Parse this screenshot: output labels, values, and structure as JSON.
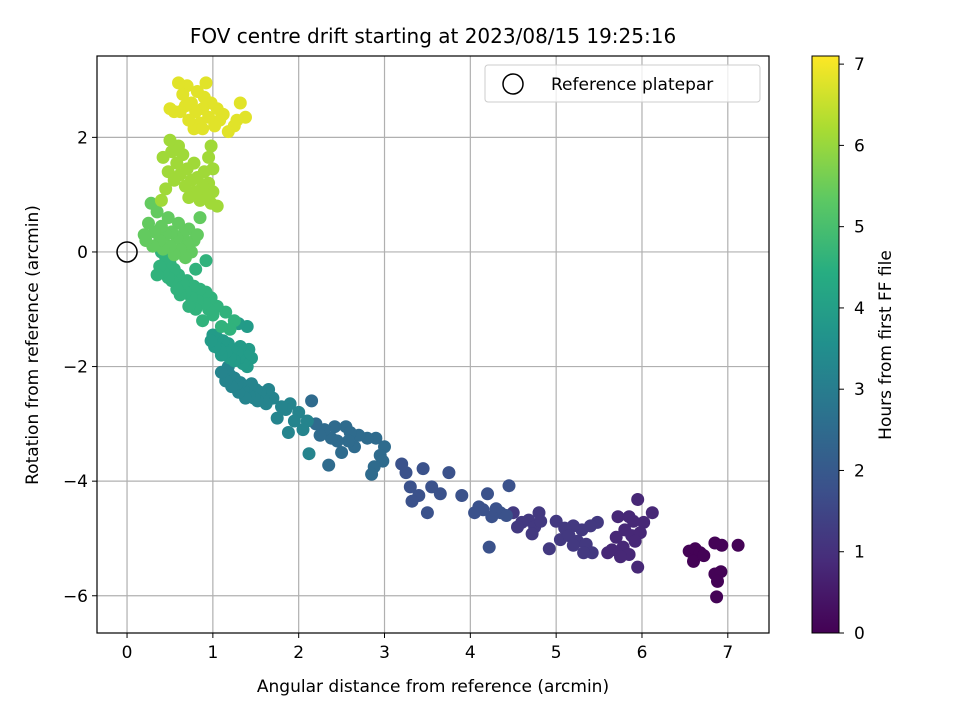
{
  "chart_data": {
    "type": "scatter",
    "title": "FOV centre drift starting at 2023/08/15 19:25:16",
    "xlabel": "Angular distance from reference (arcmin)",
    "ylabel": "Rotation from reference (arcmin)",
    "xlim": [
      -0.35,
      7.48
    ],
    "ylim": [
      -6.65,
      3.42
    ],
    "xticks": [
      0,
      1,
      2,
      3,
      4,
      5,
      6,
      7
    ],
    "yticks": [
      -6,
      -4,
      -2,
      0,
      2
    ],
    "grid": true,
    "legend": {
      "position": "top-right",
      "entries": [
        {
          "label": "Reference platepar",
          "marker": "open-circle"
        }
      ]
    },
    "reference_point": {
      "x": 0,
      "y": 0
    },
    "colorbar": {
      "label": "Hours from first FF file",
      "colormap": "viridis",
      "range": [
        0,
        7.1
      ],
      "ticks": [
        0,
        1,
        2,
        3,
        4,
        5,
        6,
        7
      ]
    },
    "series": [
      {
        "t": 0.05,
        "points": [
          [
            6.55,
            -5.22
          ],
          [
            6.62,
            -5.18
          ],
          [
            6.68,
            -5.25
          ],
          [
            6.6,
            -5.4
          ],
          [
            6.72,
            -5.3
          ],
          [
            6.85,
            -5.08
          ],
          [
            6.93,
            -5.12
          ],
          [
            7.12,
            -5.12
          ],
          [
            6.85,
            -5.62
          ],
          [
            6.92,
            -5.58
          ],
          [
            6.88,
            -5.75
          ],
          [
            6.87,
            -6.02
          ]
        ]
      },
      {
        "t": 0.8,
        "points": [
          [
            5.95,
            -4.32
          ],
          [
            6.12,
            -4.55
          ],
          [
            6.02,
            -4.72
          ],
          [
            5.72,
            -4.62
          ],
          [
            5.85,
            -4.62
          ],
          [
            5.9,
            -4.7
          ],
          [
            5.8,
            -4.85
          ],
          [
            5.7,
            -4.98
          ],
          [
            5.88,
            -4.95
          ],
          [
            5.98,
            -4.9
          ],
          [
            5.65,
            -5.2
          ],
          [
            5.78,
            -5.15
          ],
          [
            5.92,
            -5.05
          ],
          [
            5.6,
            -5.25
          ],
          [
            5.85,
            -5.28
          ],
          [
            5.95,
            -5.5
          ],
          [
            5.75,
            -5.32
          ]
        ]
      },
      {
        "t": 1.2,
        "points": [
          [
            5.48,
            -4.72
          ],
          [
            5.4,
            -4.78
          ],
          [
            5.3,
            -4.85
          ],
          [
            5.2,
            -4.78
          ],
          [
            5.1,
            -4.82
          ],
          [
            5.05,
            -5.02
          ],
          [
            5.15,
            -4.95
          ],
          [
            5.25,
            -5.05
          ],
          [
            5.35,
            -5.1
          ],
          [
            5.42,
            -5.25
          ],
          [
            5.32,
            -5.25
          ],
          [
            5.2,
            -5.12
          ],
          [
            5.0,
            -4.7
          ],
          [
            4.92,
            -5.18
          ],
          [
            4.8,
            -4.55
          ],
          [
            4.68,
            -4.68
          ],
          [
            4.75,
            -4.8
          ],
          [
            4.82,
            -4.7
          ],
          [
            4.72,
            -4.92
          ],
          [
            4.6,
            -4.72
          ],
          [
            4.55,
            -4.8
          ],
          [
            4.5,
            -4.55
          ]
        ]
      },
      {
        "t": 1.8,
        "points": [
          [
            4.45,
            -4.08
          ],
          [
            4.35,
            -4.55
          ],
          [
            4.42,
            -4.6
          ],
          [
            4.3,
            -4.48
          ],
          [
            4.25,
            -4.62
          ],
          [
            4.2,
            -4.22
          ],
          [
            4.1,
            -4.45
          ],
          [
            4.15,
            -4.5
          ],
          [
            4.05,
            -4.55
          ],
          [
            4.22,
            -5.15
          ],
          [
            3.9,
            -4.25
          ],
          [
            3.75,
            -3.85
          ],
          [
            3.65,
            -4.22
          ],
          [
            3.55,
            -4.1
          ],
          [
            3.5,
            -4.55
          ],
          [
            3.45,
            -3.78
          ],
          [
            3.4,
            -4.25
          ],
          [
            3.3,
            -4.1
          ],
          [
            3.32,
            -4.35
          ],
          [
            3.25,
            -3.85
          ],
          [
            3.2,
            -3.7
          ]
        ]
      },
      {
        "t": 2.5,
        "points": [
          [
            3.0,
            -3.4
          ],
          [
            2.95,
            -3.55
          ],
          [
            2.98,
            -3.65
          ],
          [
            2.88,
            -3.75
          ],
          [
            2.85,
            -3.88
          ],
          [
            2.9,
            -3.25
          ],
          [
            2.8,
            -3.25
          ],
          [
            2.7,
            -3.2
          ],
          [
            2.65,
            -3.4
          ],
          [
            2.55,
            -3.05
          ],
          [
            2.6,
            -3.15
          ],
          [
            2.58,
            -3.3
          ],
          [
            2.5,
            -3.5
          ],
          [
            2.45,
            -3.3
          ],
          [
            2.42,
            -3.05
          ],
          [
            2.38,
            -3.25
          ],
          [
            2.35,
            -3.72
          ],
          [
            2.3,
            -3.1
          ],
          [
            2.25,
            -3.2
          ],
          [
            2.2,
            -3.0
          ],
          [
            2.15,
            -2.6
          ]
        ]
      },
      {
        "t": 3.2,
        "points": [
          [
            2.1,
            -2.95
          ],
          [
            2.12,
            -3.52
          ],
          [
            2.05,
            -3.1
          ],
          [
            2.0,
            -2.8
          ],
          [
            1.95,
            -2.95
          ],
          [
            1.9,
            -2.65
          ],
          [
            1.88,
            -3.15
          ],
          [
            1.85,
            -2.75
          ],
          [
            1.8,
            -2.7
          ],
          [
            1.75,
            -2.9
          ],
          [
            1.7,
            -2.55
          ],
          [
            1.65,
            -2.4
          ],
          [
            1.62,
            -2.65
          ],
          [
            1.58,
            -2.55
          ],
          [
            1.55,
            -2.45
          ],
          [
            1.52,
            -2.6
          ],
          [
            1.5,
            -2.4
          ],
          [
            1.48,
            -2.55
          ],
          [
            1.45,
            -2.3
          ],
          [
            1.42,
            -2.5
          ],
          [
            1.4,
            -2.35
          ],
          [
            1.35,
            -2.4
          ],
          [
            1.38,
            -2.55
          ],
          [
            1.32,
            -2.28
          ],
          [
            1.3,
            -2.45
          ],
          [
            1.28,
            -2.3
          ],
          [
            1.25,
            -2.2
          ],
          [
            1.22,
            -2.35
          ],
          [
            1.2,
            -2.15
          ],
          [
            1.18,
            -2.0
          ],
          [
            1.15,
            -2.25
          ],
          [
            1.1,
            -2.1
          ]
        ]
      },
      {
        "t": 3.9,
        "points": [
          [
            1.45,
            -1.85
          ],
          [
            1.42,
            -1.7
          ],
          [
            1.4,
            -2.0
          ],
          [
            1.38,
            -1.8
          ],
          [
            1.35,
            -1.95
          ],
          [
            1.32,
            -1.65
          ],
          [
            1.3,
            -1.85
          ],
          [
            1.28,
            -1.75
          ],
          [
            1.25,
            -1.9
          ],
          [
            1.22,
            -1.7
          ],
          [
            1.2,
            -1.85
          ],
          [
            1.18,
            -1.6
          ],
          [
            1.15,
            -1.75
          ],
          [
            1.12,
            -1.55
          ],
          [
            1.1,
            -1.8
          ],
          [
            1.08,
            -1.7
          ],
          [
            1.05,
            -1.5
          ],
          [
            1.02,
            -1.65
          ],
          [
            1.0,
            -1.45
          ],
          [
            0.98,
            -1.55
          ],
          [
            1.4,
            -1.3
          ],
          [
            1.3,
            -1.25
          ]
        ]
      },
      {
        "t": 4.6,
        "points": [
          [
            1.25,
            -1.2
          ],
          [
            1.2,
            -1.35
          ],
          [
            1.15,
            -1.05
          ],
          [
            1.1,
            -1.3
          ],
          [
            1.05,
            -0.95
          ],
          [
            1.0,
            -1.1
          ],
          [
            0.98,
            -0.8
          ],
          [
            0.95,
            -1.0
          ],
          [
            0.92,
            -0.7
          ],
          [
            0.9,
            -0.9
          ],
          [
            0.88,
            -1.2
          ],
          [
            0.85,
            -0.65
          ],
          [
            0.82,
            -0.85
          ],
          [
            0.8,
            -1.0
          ],
          [
            0.78,
            -0.6
          ],
          [
            0.75,
            -0.8
          ],
          [
            0.72,
            -0.95
          ],
          [
            0.7,
            -0.5
          ],
          [
            0.68,
            -0.7
          ],
          [
            0.65,
            -0.55
          ],
          [
            0.62,
            -0.75
          ],
          [
            0.6,
            -0.4
          ],
          [
            0.58,
            -0.65
          ],
          [
            0.55,
            -0.3
          ],
          [
            0.52,
            -0.5
          ],
          [
            0.5,
            -0.2
          ],
          [
            0.48,
            -0.45
          ],
          [
            0.45,
            -0.1
          ],
          [
            0.42,
            -0.35
          ],
          [
            0.4,
            0.0
          ],
          [
            0.38,
            -0.25
          ],
          [
            0.35,
            -0.4
          ],
          [
            0.92,
            -0.15
          ],
          [
            0.8,
            -0.3
          ]
        ]
      },
      {
        "t": 5.4,
        "points": [
          [
            0.78,
            0.2
          ],
          [
            0.75,
            0.0
          ],
          [
            0.72,
            0.4
          ],
          [
            0.7,
            0.15
          ],
          [
            0.68,
            -0.1
          ],
          [
            0.65,
            0.3
          ],
          [
            0.62,
            0.05
          ],
          [
            0.6,
            0.5
          ],
          [
            0.58,
            0.25
          ],
          [
            0.55,
            -0.05
          ],
          [
            0.52,
            0.35
          ],
          [
            0.5,
            0.1
          ],
          [
            0.48,
            0.6
          ],
          [
            0.45,
            0.3
          ],
          [
            0.42,
            0.05
          ],
          [
            0.4,
            0.45
          ],
          [
            0.38,
            0.2
          ],
          [
            0.35,
            0.7
          ],
          [
            0.32,
            0.35
          ],
          [
            0.3,
            0.1
          ],
          [
            0.28,
            0.85
          ],
          [
            0.25,
            0.5
          ],
          [
            0.22,
            0.2
          ],
          [
            0.2,
            0.3
          ],
          [
            0.85,
            0.6
          ],
          [
            0.82,
            0.3
          ]
        ]
      },
      {
        "t": 6.1,
        "points": [
          [
            1.05,
            0.8
          ],
          [
            1.0,
            1.05
          ],
          [
            0.98,
            0.85
          ],
          [
            0.95,
            1.2
          ],
          [
            0.92,
            1.0
          ],
          [
            0.9,
            1.4
          ],
          [
            0.88,
            1.15
          ],
          [
            0.85,
            0.9
          ],
          [
            0.82,
            1.3
          ],
          [
            0.8,
            1.05
          ],
          [
            0.78,
            1.55
          ],
          [
            0.75,
            1.25
          ],
          [
            0.72,
            0.95
          ],
          [
            0.7,
            1.45
          ],
          [
            0.68,
            1.15
          ],
          [
            0.65,
            1.7
          ],
          [
            0.62,
            1.35
          ],
          [
            0.6,
            1.85
          ],
          [
            0.58,
            1.55
          ],
          [
            0.55,
            1.25
          ],
          [
            0.52,
            1.75
          ],
          [
            0.5,
            1.95
          ],
          [
            0.48,
            1.4
          ],
          [
            0.45,
            1.1
          ],
          [
            0.42,
            1.65
          ],
          [
            0.4,
            0.9
          ],
          [
            0.95,
            1.65
          ],
          [
            0.98,
            1.85
          ],
          [
            1.0,
            1.45
          ]
        ]
      },
      {
        "t": 6.8,
        "points": [
          [
            1.38,
            2.35
          ],
          [
            1.32,
            2.6
          ],
          [
            1.28,
            2.3
          ],
          [
            1.25,
            2.2
          ],
          [
            1.18,
            2.1
          ],
          [
            1.12,
            2.4
          ],
          [
            1.08,
            2.3
          ],
          [
            1.05,
            2.5
          ],
          [
            1.02,
            2.2
          ],
          [
            0.98,
            2.6
          ],
          [
            0.95,
            2.35
          ],
          [
            0.92,
            2.95
          ],
          [
            0.9,
            2.7
          ],
          [
            0.88,
            2.5
          ],
          [
            0.85,
            2.25
          ],
          [
            0.82,
            2.8
          ],
          [
            0.8,
            2.45
          ],
          [
            0.78,
            2.15
          ],
          [
            0.75,
            2.6
          ],
          [
            0.72,
            2.3
          ],
          [
            0.7,
            2.9
          ],
          [
            0.68,
            2.55
          ],
          [
            0.65,
            2.75
          ],
          [
            0.62,
            2.45
          ],
          [
            0.6,
            2.95
          ],
          [
            0.55,
            2.45
          ],
          [
            0.5,
            2.5
          ],
          [
            0.88,
            2.15
          ]
        ]
      }
    ]
  }
}
